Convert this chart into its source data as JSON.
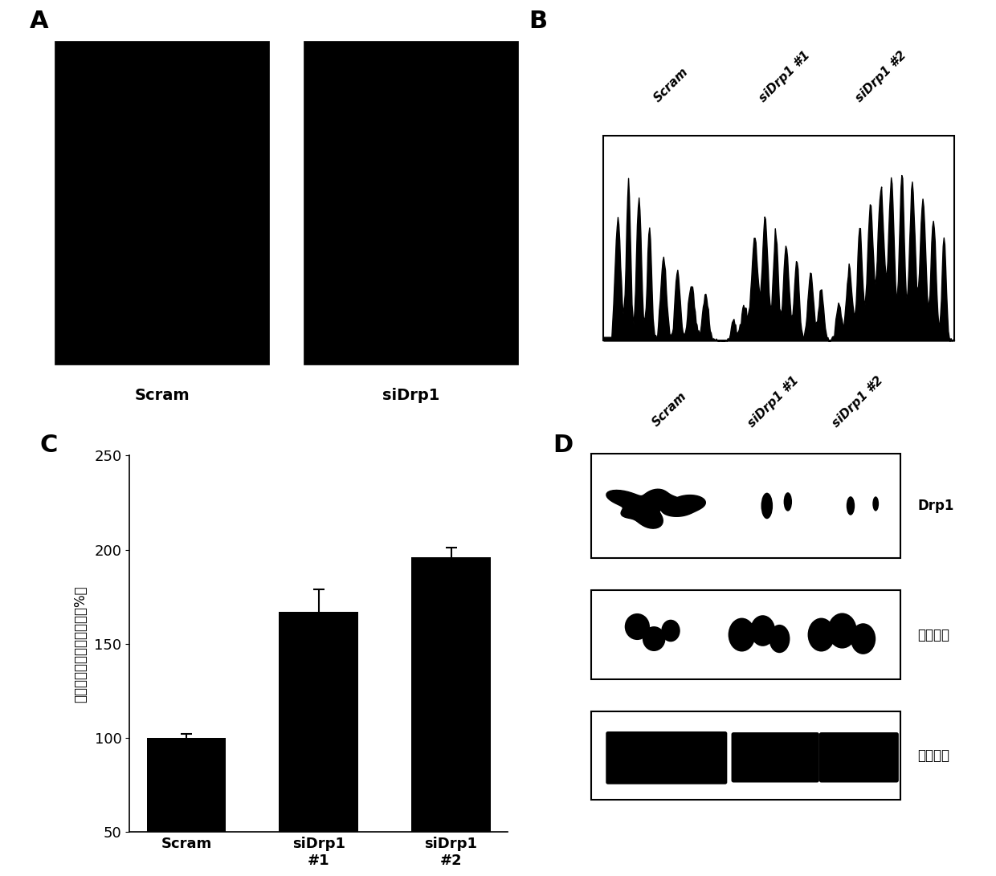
{
  "panel_A": {
    "label": "A",
    "box1_label": "Scram",
    "box2_label": "siDrp1"
  },
  "panel_B": {
    "label": "B",
    "lane_labels": [
      "Scram",
      "siDrp1 #1",
      "siDrp1 #2"
    ]
  },
  "panel_C": {
    "label": "C",
    "categories": [
      "Scram",
      "siDrp1\n#1",
      "siDrp1\n#2"
    ],
    "values": [
      100,
      167,
      196
    ],
    "errors": [
      2,
      12,
      5
    ],
    "bar_color": "#000000",
    "ylabel": "黑色素含量（相对于对照组%）",
    "ylim": [
      50,
      250
    ],
    "yticks": [
      50,
      100,
      150,
      200,
      250
    ]
  },
  "panel_D": {
    "label": "D",
    "lane_labels": [
      "Scram",
      "siDrp1 #1",
      "siDrp1 #2"
    ],
    "row_labels": [
      "Drp1",
      "酰氨酸酶",
      "肌动蛋白"
    ]
  },
  "bg_color": "#ffffff",
  "text_color": "#000000"
}
